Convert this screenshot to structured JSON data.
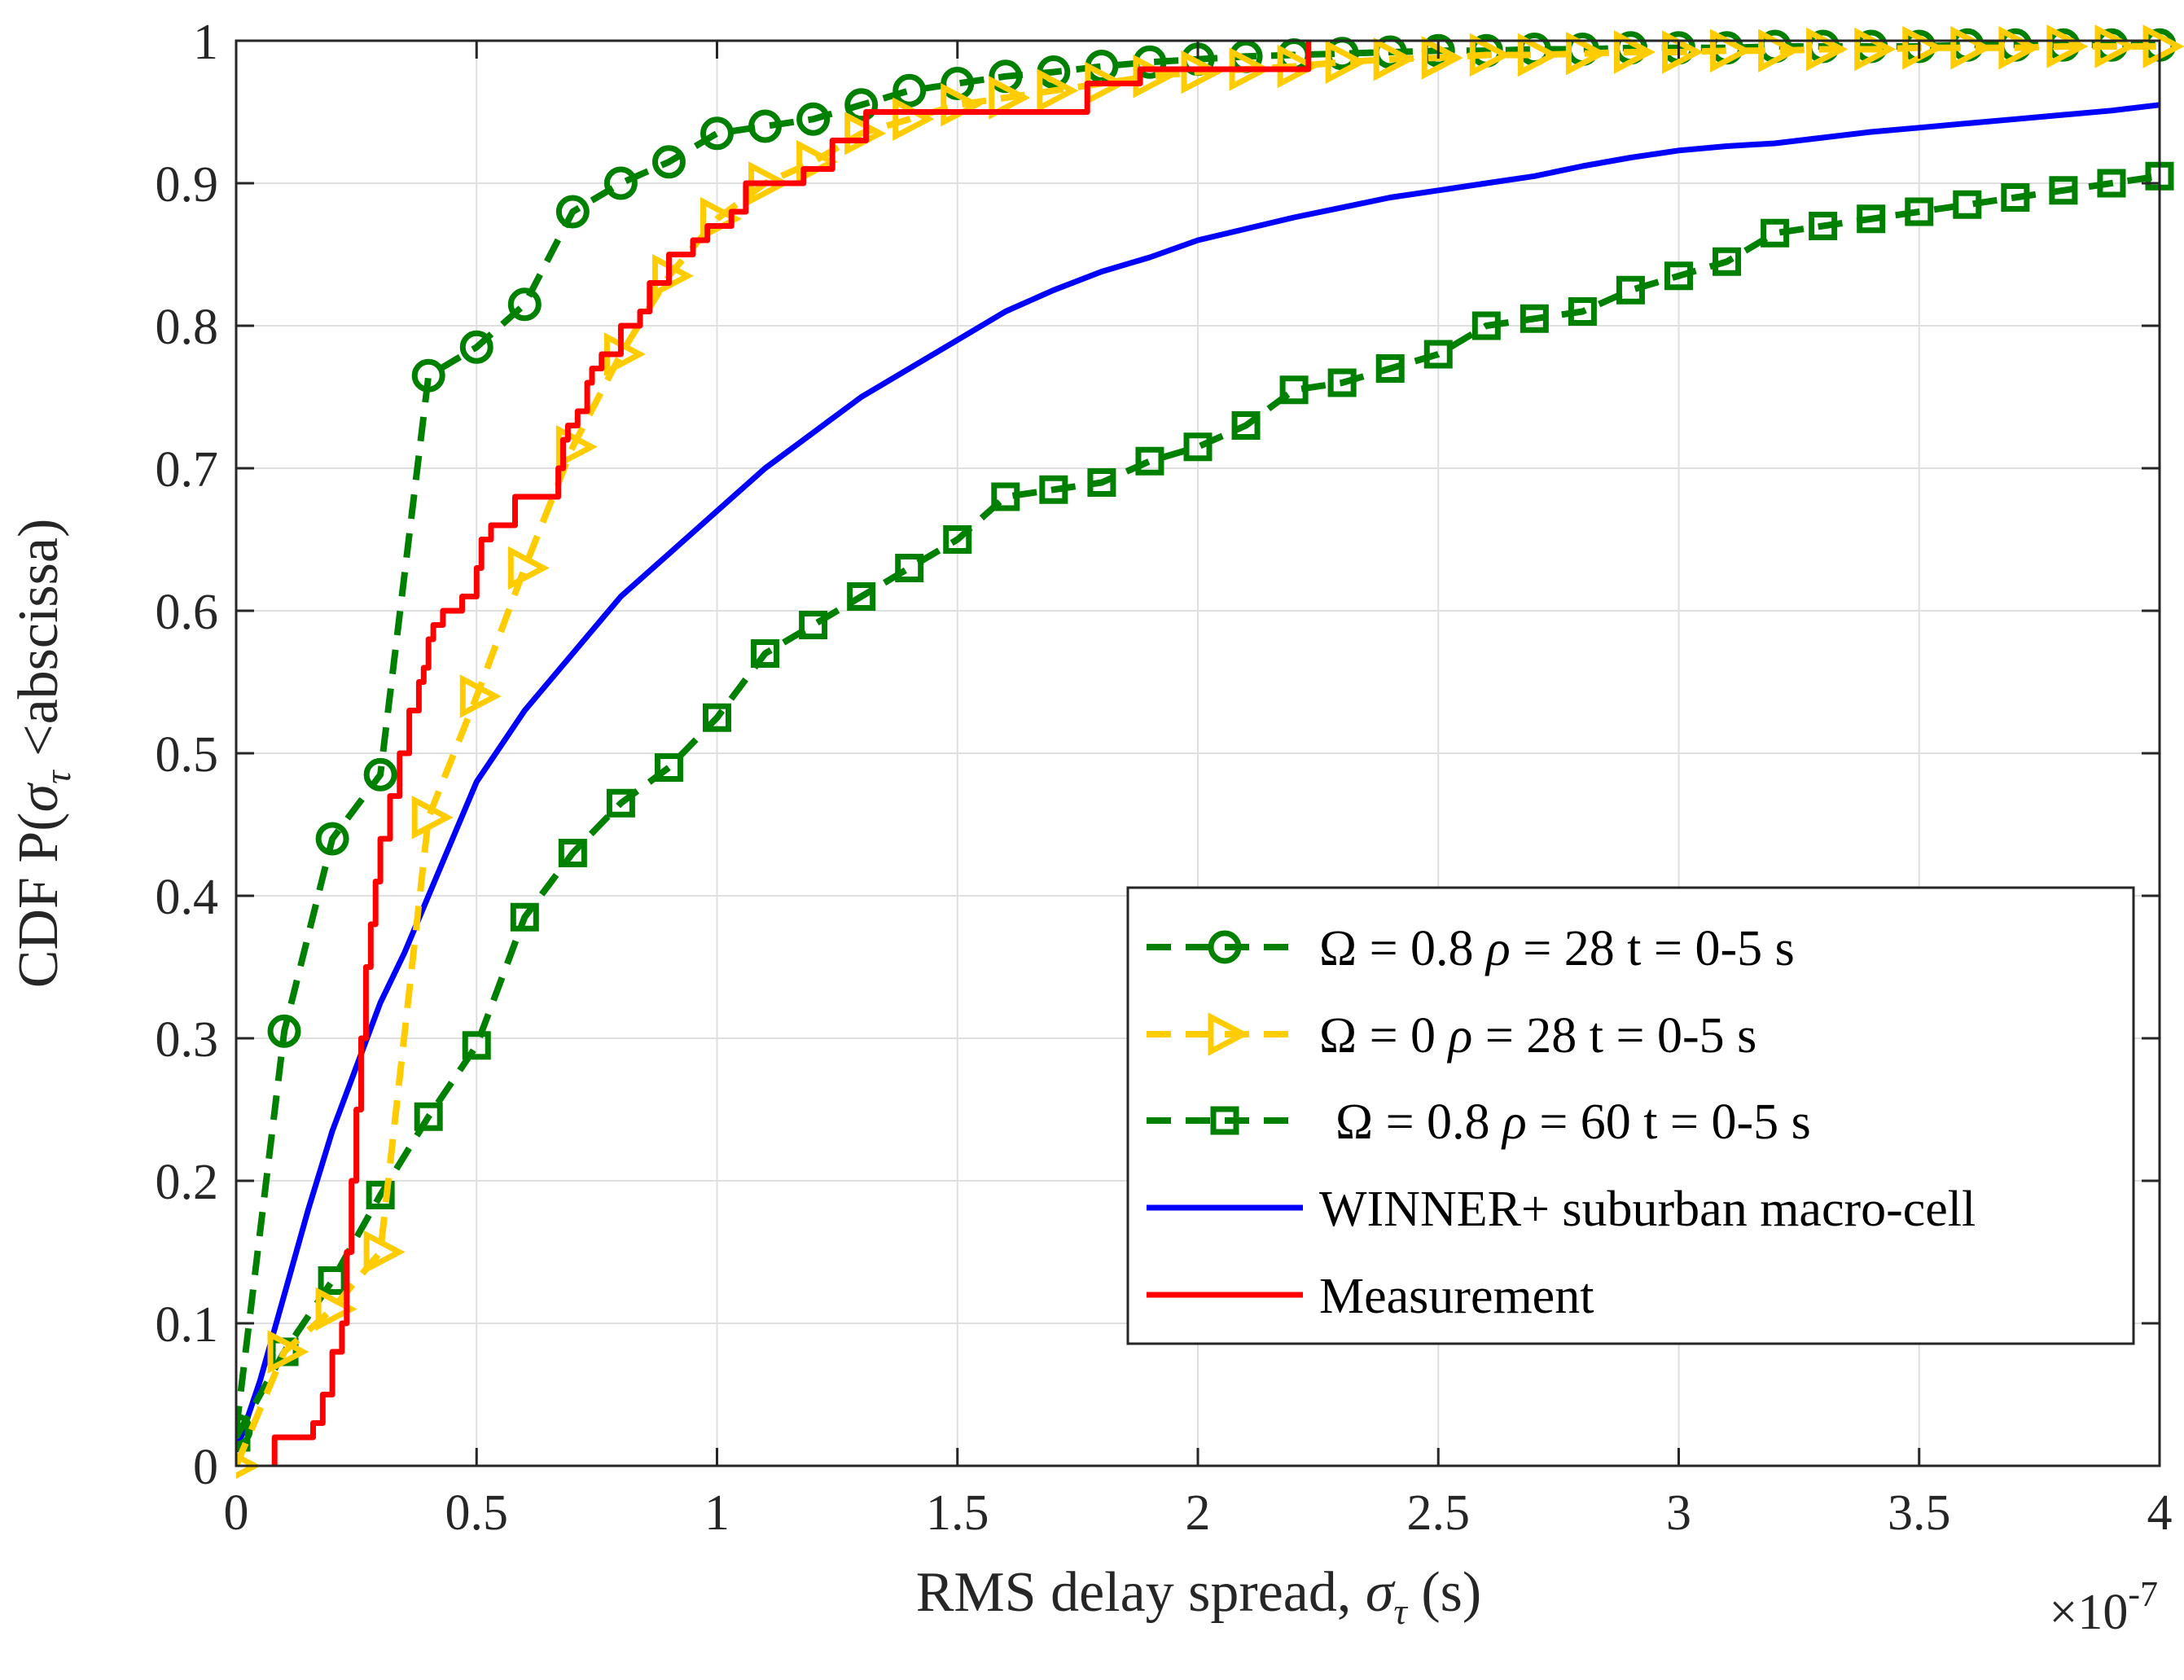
{
  "chart_data": {
    "type": "line",
    "title": "",
    "xlabel": "RMS delay spread, σ_τ (s)",
    "xlabel_parts": {
      "text": "RMS delay spread, ",
      "sym": "σ",
      "sub": "τ",
      "unit": " (s)"
    },
    "ylabel": "CDF P(σ_τ <abscissa)",
    "ylabel_parts": {
      "prefix": "CDF P(",
      "sym": "σ",
      "sub": "τ",
      "suffix": " <abscissa)"
    },
    "x_exponent": {
      "base": "×10",
      "exp": "-7"
    },
    "xlim": [
      0,
      4
    ],
    "ylim": [
      0,
      1
    ],
    "xticks": [
      0,
      0.5,
      1,
      1.5,
      2,
      2.5,
      3,
      3.5,
      4
    ],
    "xtick_labels": [
      "0",
      "0.5",
      "1",
      "1.5",
      "2",
      "2.5",
      "3",
      "3.5",
      "4"
    ],
    "yticks": [
      0,
      0.1,
      0.2,
      0.3,
      0.4,
      0.5,
      0.6,
      0.7,
      0.8,
      0.9,
      1
    ],
    "ytick_labels": [
      "0",
      "0.1",
      "0.2",
      "0.3",
      "0.4",
      "0.5",
      "0.6",
      "0.7",
      "0.8",
      "0.9",
      "1"
    ],
    "grid": true,
    "legend_position": "bottom-right",
    "series": [
      {
        "name": "Ω = 0.8 ρ = 28 t = 0-5 s",
        "legend": {
          "omega": "Ω",
          "omega_val": " = 0.8 ",
          "rho": "ρ",
          "rest": " = 28 t = 0-5 s"
        },
        "color": "#008000",
        "style": "dashed",
        "marker": "circle",
        "x": [
          0,
          0.1,
          0.2,
          0.3,
          0.4,
          0.5,
          0.6,
          0.7,
          0.8,
          0.9,
          1.0,
          1.1,
          1.2,
          1.3,
          1.4,
          1.5,
          1.6,
          1.7,
          1.8,
          1.9,
          2.0,
          2.1,
          2.2,
          2.3,
          2.4,
          2.5,
          2.6,
          2.7,
          2.8,
          2.9,
          3.0,
          3.1,
          3.2,
          3.3,
          3.4,
          3.5,
          3.6,
          3.7,
          3.8,
          3.9,
          4.0
        ],
        "y": [
          0.025,
          0.305,
          0.44,
          0.485,
          0.765,
          0.785,
          0.815,
          0.88,
          0.9,
          0.915,
          0.935,
          0.94,
          0.945,
          0.955,
          0.965,
          0.97,
          0.975,
          0.978,
          0.982,
          0.985,
          0.987,
          0.989,
          0.99,
          0.991,
          0.992,
          0.993,
          0.993,
          0.994,
          0.994,
          0.995,
          0.995,
          0.995,
          0.996,
          0.996,
          0.996,
          0.996,
          0.997,
          0.997,
          0.997,
          0.997,
          0.997
        ]
      },
      {
        "name": "Ω = 0 ρ = 28 t = 0-5 s",
        "legend": {
          "omega": "Ω",
          "omega_val": " = 0 ",
          "rho": "ρ",
          "rest": " = 28 t = 0-5 s"
        },
        "color": "#ffcc00",
        "style": "dashed",
        "marker": "triangle-right",
        "x": [
          0,
          0.1,
          0.2,
          0.3,
          0.4,
          0.5,
          0.6,
          0.7,
          0.8,
          0.9,
          1.0,
          1.1,
          1.2,
          1.3,
          1.4,
          1.5,
          1.6,
          1.7,
          1.8,
          1.9,
          2.0,
          2.1,
          2.2,
          2.3,
          2.4,
          2.5,
          2.6,
          2.7,
          2.8,
          2.9,
          3.0,
          3.1,
          3.2,
          3.3,
          3.4,
          3.5,
          3.6,
          3.7,
          3.8,
          3.9,
          4.0
        ],
        "y": [
          0.0,
          0.08,
          0.11,
          0.15,
          0.455,
          0.54,
          0.63,
          0.715,
          0.78,
          0.835,
          0.875,
          0.9,
          0.915,
          0.935,
          0.945,
          0.955,
          0.96,
          0.965,
          0.97,
          0.975,
          0.978,
          0.98,
          0.982,
          0.985,
          0.987,
          0.988,
          0.99,
          0.99,
          0.991,
          0.992,
          0.992,
          0.993,
          0.993,
          0.994,
          0.994,
          0.995,
          0.995,
          0.995,
          0.996,
          0.996,
          0.996
        ]
      },
      {
        "name": "Ω = 0.8 ρ = 60 t = 0-5 s",
        "legend": {
          "omega": "Ω",
          "omega_val": " = 0.8 ",
          "rho": "ρ",
          "rest": " = 60 t = 0-5 s"
        },
        "color": "#008000",
        "style": "dashed",
        "marker": "square",
        "x": [
          0,
          0.1,
          0.2,
          0.3,
          0.4,
          0.5,
          0.6,
          0.7,
          0.8,
          0.9,
          1.0,
          1.1,
          1.2,
          1.3,
          1.4,
          1.5,
          1.6,
          1.7,
          1.8,
          1.9,
          2.0,
          2.1,
          2.2,
          2.3,
          2.4,
          2.5,
          2.6,
          2.7,
          2.8,
          2.9,
          3.0,
          3.1,
          3.2,
          3.3,
          3.4,
          3.5,
          3.6,
          3.7,
          3.8,
          3.9,
          4.0
        ],
        "y": [
          0.02,
          0.08,
          0.13,
          0.19,
          0.245,
          0.295,
          0.385,
          0.43,
          0.465,
          0.49,
          0.525,
          0.57,
          0.59,
          0.61,
          0.63,
          0.65,
          0.68,
          0.685,
          0.69,
          0.705,
          0.715,
          0.73,
          0.755,
          0.76,
          0.77,
          0.78,
          0.8,
          0.805,
          0.81,
          0.825,
          0.835,
          0.845,
          0.865,
          0.87,
          0.875,
          0.88,
          0.885,
          0.89,
          0.895,
          0.9,
          0.905
        ]
      },
      {
        "name": "WINNER+ suburban macro-cell",
        "legend": {
          "text": "WINNER+ suburban macro-cell"
        },
        "color": "#0000ff",
        "style": "solid",
        "marker": "none",
        "x": [
          0,
          0.05,
          0.1,
          0.15,
          0.2,
          0.25,
          0.3,
          0.35,
          0.4,
          0.45,
          0.5,
          0.6,
          0.7,
          0.8,
          0.9,
          1.0,
          1.1,
          1.2,
          1.3,
          1.4,
          1.5,
          1.6,
          1.7,
          1.8,
          1.9,
          2.0,
          2.1,
          2.2,
          2.3,
          2.4,
          2.5,
          2.6,
          2.7,
          2.8,
          2.9,
          3.0,
          3.1,
          3.2,
          3.3,
          3.4,
          3.5,
          3.6,
          3.7,
          3.8,
          3.9,
          4.0
        ],
        "y": [
          0.01,
          0.06,
          0.12,
          0.18,
          0.235,
          0.28,
          0.325,
          0.36,
          0.4,
          0.44,
          0.48,
          0.53,
          0.57,
          0.61,
          0.64,
          0.67,
          0.7,
          0.725,
          0.75,
          0.77,
          0.79,
          0.81,
          0.825,
          0.838,
          0.848,
          0.86,
          0.868,
          0.876,
          0.883,
          0.89,
          0.895,
          0.9,
          0.905,
          0.912,
          0.918,
          0.923,
          0.926,
          0.928,
          0.932,
          0.936,
          0.939,
          0.942,
          0.945,
          0.948,
          0.951,
          0.955
        ]
      },
      {
        "name": "Measurement",
        "legend": {
          "text": "Measurement"
        },
        "color": "#ff0000",
        "style": "solid",
        "marker": "none",
        "step": true,
        "x": [
          0.08,
          0.08,
          0.16,
          0.16,
          0.18,
          0.18,
          0.2,
          0.2,
          0.22,
          0.22,
          0.23,
          0.23,
          0.24,
          0.24,
          0.25,
          0.25,
          0.26,
          0.26,
          0.27,
          0.27,
          0.28,
          0.28,
          0.29,
          0.29,
          0.3,
          0.3,
          0.32,
          0.32,
          0.34,
          0.34,
          0.36,
          0.36,
          0.38,
          0.38,
          0.39,
          0.39,
          0.4,
          0.4,
          0.41,
          0.41,
          0.42,
          0.42,
          0.43,
          0.43,
          0.44,
          0.44,
          0.47,
          0.47,
          0.48,
          0.48,
          0.5,
          0.5,
          0.51,
          0.51,
          0.53,
          0.53,
          0.54,
          0.54,
          0.58,
          0.58,
          0.64,
          0.64,
          0.67,
          0.67,
          0.68,
          0.68,
          0.69,
          0.69,
          0.71,
          0.71,
          0.73,
          0.73,
          0.74,
          0.74,
          0.76,
          0.76,
          0.78,
          0.78,
          0.8,
          0.8,
          0.84,
          0.84,
          0.86,
          0.86,
          0.9,
          0.9,
          0.95,
          0.95,
          0.98,
          0.98,
          1.03,
          1.03,
          1.06,
          1.06,
          1.09,
          1.09,
          1.18,
          1.18,
          1.24,
          1.24,
          1.29,
          1.29,
          1.31,
          1.31,
          1.32,
          1.32,
          1.77,
          1.77,
          1.88,
          1.88,
          2.23,
          2.23
        ],
        "y": [
          0.0,
          0.02,
          0.02,
          0.03,
          0.03,
          0.05,
          0.05,
          0.08,
          0.08,
          0.1,
          0.1,
          0.15,
          0.15,
          0.2,
          0.2,
          0.25,
          0.25,
          0.3,
          0.3,
          0.35,
          0.35,
          0.38,
          0.38,
          0.41,
          0.41,
          0.44,
          0.44,
          0.47,
          0.47,
          0.5,
          0.5,
          0.53,
          0.53,
          0.55,
          0.55,
          0.56,
          0.56,
          0.58,
          0.58,
          0.59,
          0.59,
          0.59,
          0.59,
          0.6,
          0.6,
          0.6,
          0.6,
          0.61,
          0.61,
          0.61,
          0.61,
          0.63,
          0.63,
          0.65,
          0.65,
          0.66,
          0.66,
          0.66,
          0.66,
          0.68,
          0.68,
          0.68,
          0.68,
          0.7,
          0.7,
          0.72,
          0.72,
          0.73,
          0.73,
          0.74,
          0.74,
          0.76,
          0.76,
          0.77,
          0.77,
          0.78,
          0.78,
          0.78,
          0.78,
          0.8,
          0.8,
          0.81,
          0.81,
          0.83,
          0.83,
          0.85,
          0.85,
          0.86,
          0.86,
          0.87,
          0.87,
          0.88,
          0.88,
          0.9,
          0.9,
          0.9,
          0.9,
          0.91,
          0.91,
          0.93,
          0.93,
          0.93,
          0.93,
          0.95,
          0.95,
          0.95,
          0.95,
          0.97,
          0.97,
          0.98,
          0.98,
          1.0
        ]
      }
    ]
  }
}
